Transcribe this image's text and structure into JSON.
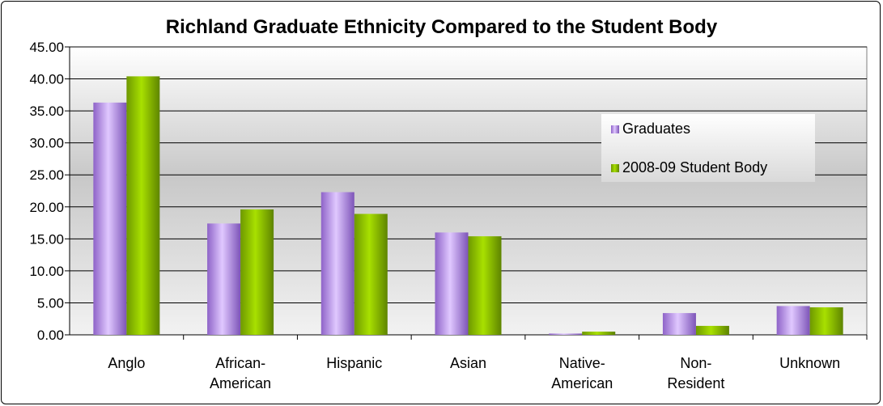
{
  "chart_data": {
    "type": "bar",
    "title": "Richland Graduate Ethnicity Compared to the Student Body",
    "xlabel": "",
    "ylabel": "",
    "ylim": [
      0,
      45
    ],
    "y_ticks": [
      "0.00",
      "5.00",
      "10.00",
      "15.00",
      "20.00",
      "25.00",
      "30.00",
      "35.00",
      "40.00",
      "45.00"
    ],
    "categories": [
      [
        "Anglo"
      ],
      [
        "African-",
        "American"
      ],
      [
        "Hispanic"
      ],
      [
        "Asian"
      ],
      [
        "Native-",
        "American"
      ],
      [
        "Non-",
        "Resident"
      ],
      [
        "Unknown"
      ]
    ],
    "series": [
      {
        "name": "Graduates",
        "color": "#b58ee8",
        "values": [
          36.3,
          17.4,
          22.3,
          16.0,
          0.2,
          3.4,
          4.5
        ]
      },
      {
        "name": "2008-09 Student Body",
        "color": "#8cbf00",
        "values": [
          40.4,
          19.6,
          18.9,
          15.4,
          0.5,
          1.4,
          4.3
        ]
      }
    ],
    "grid": true,
    "legend_position": "right"
  }
}
